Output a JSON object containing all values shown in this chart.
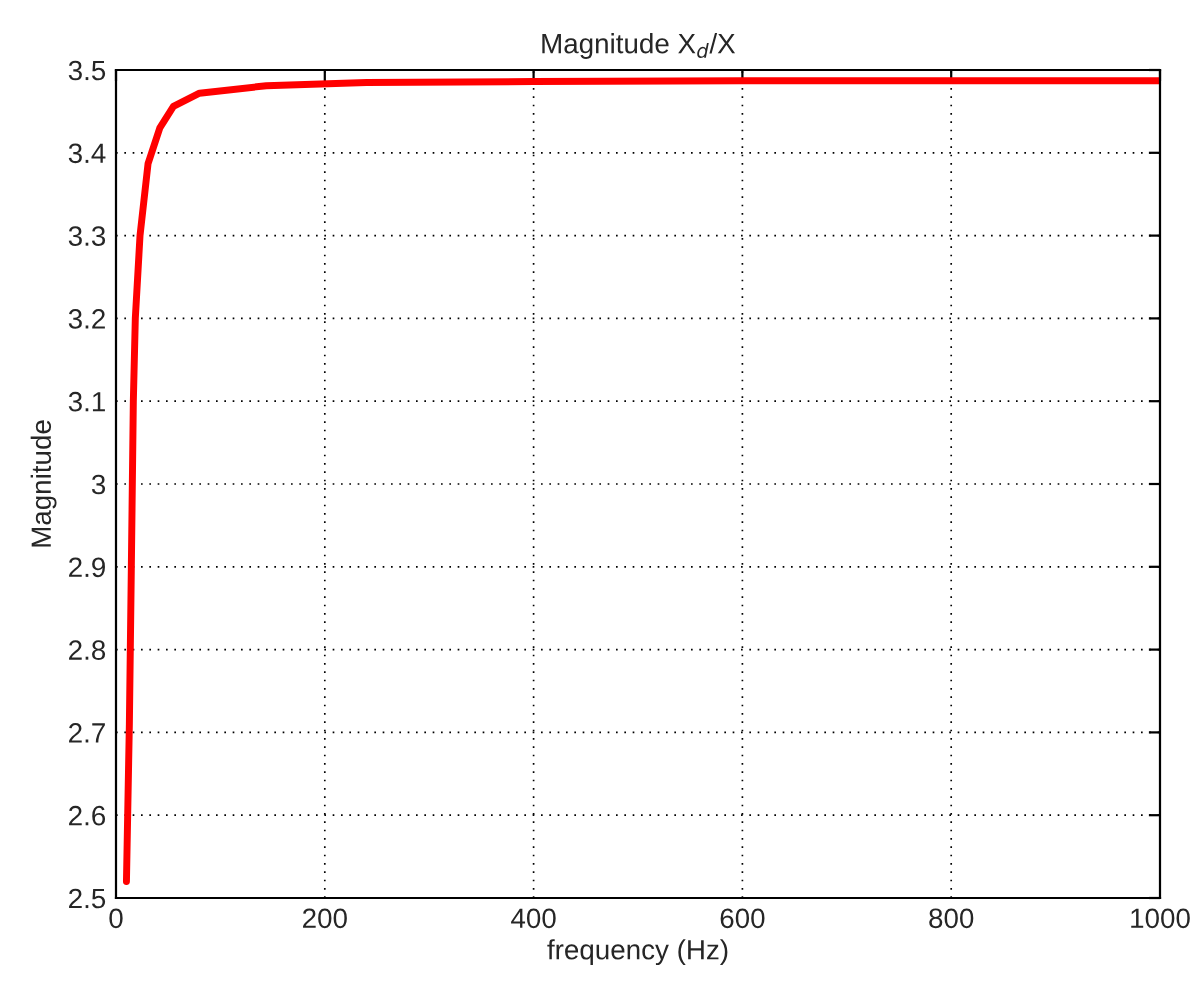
{
  "chart_data": {
    "type": "line",
    "title": "Magnitude X$_{d}$/X",
    "xlabel": "frequency (Hz)",
    "ylabel": "Magnitude",
    "series": [
      {
        "color": "#ff0000",
        "x": [
          10,
          12.8,
          14.7,
          16.6,
          18.5,
          23,
          30.7,
          42,
          55,
          80,
          144,
          240,
          400,
          600,
          800,
          1000
        ],
        "values": [
          2.52,
          2.71,
          2.9,
          3.1,
          3.2,
          3.3,
          3.387,
          3.43,
          3.456,
          3.472,
          3.481,
          3.485,
          3.486,
          3.487,
          3.487,
          3.487
        ]
      }
    ],
    "xlim": [
      0,
      1000
    ],
    "xticks": [
      0,
      200,
      400,
      600,
      800,
      1000
    ],
    "ylim": [
      2.5,
      3.5
    ],
    "yticks": [
      {
        "value": 2.5,
        "label": "2.5"
      },
      {
        "value": 2.6,
        "label": "2.6"
      },
      {
        "value": 2.7,
        "label": "2.7"
      },
      {
        "value": 2.8,
        "label": "2.8"
      },
      {
        "value": 2.9,
        "label": "2.9"
      },
      {
        "value": 3,
        "label": "3"
      },
      {
        "value": 3.1,
        "label": "3.1"
      },
      {
        "value": 3.2,
        "label": "3.2"
      },
      {
        "value": 3.3,
        "label": "3.3"
      },
      {
        "value": 3.4,
        "label": "3.4"
      },
      {
        "value": 3.5,
        "label": "3.5"
      }
    ],
    "grid": true,
    "line_style": "solid"
  }
}
